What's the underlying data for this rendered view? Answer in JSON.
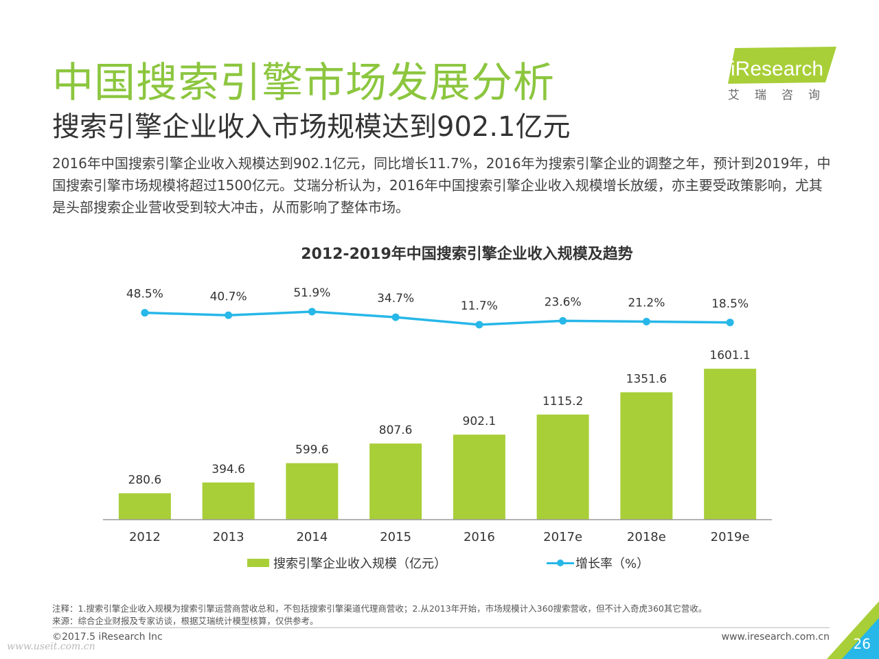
{
  "header": {
    "title": "中国搜索引擎市场发展分析",
    "subtitle": "搜索引擎企业收入市场规模达到902.1亿元",
    "summary": "2016年中国搜索引擎企业收入规模达到902.1亿元，同比增长11.7%，2016年为搜索引擎企业的调整之年，预计到2019年，中国搜索引擎市场规模将超过1500亿元。艾瑞分析认为，2016年中国搜索引擎企业收入规模增长放缓，亦主要受政策影响，尤其是头部搜索企业营收受到较大冲击，从而影响了整体市场。"
  },
  "logo": {
    "text": "iResearch",
    "cn": "艾瑞咨询",
    "color": "#a8cf38"
  },
  "chart_data": {
    "type": "bar",
    "title": "2012-2019年中国搜索引擎企业收入规模及趋势",
    "categories": [
      "2012",
      "2013",
      "2014",
      "2015",
      "2016",
      "2017e",
      "2018e",
      "2019e"
    ],
    "series": [
      {
        "name": "搜索引擎企业收入规模（亿元）",
        "type": "bar",
        "values": [
          280.6,
          394.6,
          599.6,
          807.6,
          902.1,
          1115.2,
          1351.6,
          1601.1
        ],
        "labels": [
          "280.6",
          "394.6",
          "599.6",
          "807.6",
          "902.1",
          "1115.2",
          "1351.6",
          "1601.1"
        ],
        "color": "#a8cf38"
      },
      {
        "name": "增长率（%）",
        "type": "line",
        "values": [
          48.5,
          40.7,
          51.9,
          34.7,
          11.7,
          23.6,
          21.2,
          18.5
        ],
        "labels": [
          "48.5%",
          "40.7%",
          "51.9%",
          "34.7%",
          "11.7%",
          "23.6%",
          "21.2%",
          "18.5%"
        ],
        "color": "#27b7e8"
      }
    ],
    "grid": false,
    "legend_position": "bottom"
  },
  "notes": {
    "note": "注释：1.搜索引擎企业收入规模为搜索引擎运营商营收总和，不包括搜索引擎渠道代理商营收；2.从2013年开始，市场规模计入360搜索营收，但不计入奇虎360其它营收。",
    "source": "来源：综合企业财报及专家访谈，根据艾瑞统计模型核算，仅供参考。"
  },
  "footer": {
    "copyright": "©2017.5 iResearch Inc",
    "website": "www.iresearch.com.cn",
    "page_number": "26",
    "watermark": "www.useit.com.cn",
    "accent_color": "#27b7e8"
  }
}
